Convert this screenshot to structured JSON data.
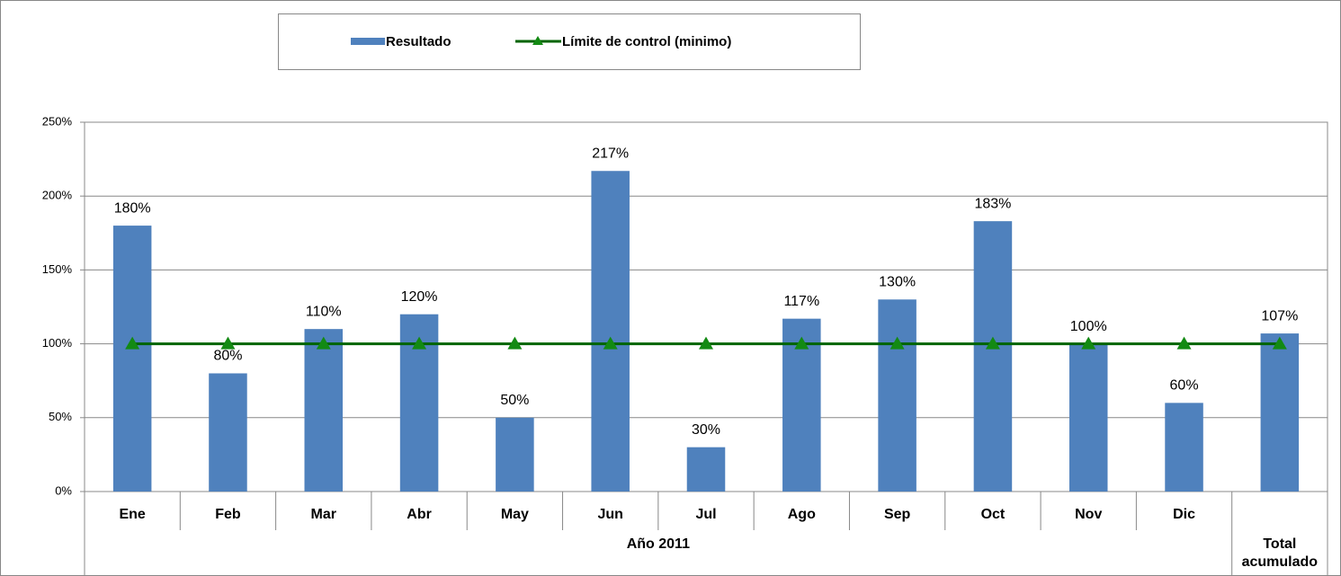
{
  "chart_data": {
    "type": "bar",
    "categories": [
      "Ene",
      "Feb",
      "Mar",
      "Abr",
      "May",
      "Jun",
      "Jul",
      "Ago",
      "Sep",
      "Oct",
      "Nov",
      "Dic",
      "Total acumulado"
    ],
    "category_group": "Año 2011",
    "series": [
      {
        "name": "Resultado",
        "type": "bar",
        "color": "#4f81bd",
        "values": [
          180,
          80,
          110,
          120,
          50,
          217,
          30,
          117,
          130,
          183,
          100,
          60,
          107
        ],
        "value_labels": [
          "180%",
          "80%",
          "110%",
          "120%",
          "50%",
          "217%",
          "30%",
          "117%",
          "130%",
          "183%",
          "100%",
          "60%",
          "107%"
        ]
      },
      {
        "name": "Límite de control (minimo)",
        "type": "line",
        "color": "#006400",
        "marker_color": "#138a13",
        "values": [
          100,
          100,
          100,
          100,
          100,
          100,
          100,
          100,
          100,
          100,
          100,
          100,
          100
        ]
      }
    ],
    "ylim": [
      0,
      250
    ],
    "yticks": [
      {
        "value": 0,
        "label": "0%"
      },
      {
        "value": 50,
        "label": "50%"
      },
      {
        "value": 100,
        "label": "100%"
      },
      {
        "value": 150,
        "label": "150%"
      },
      {
        "value": 200,
        "label": "200%"
      },
      {
        "value": 250,
        "label": "250%"
      }
    ],
    "grid": true,
    "legend": "top"
  }
}
